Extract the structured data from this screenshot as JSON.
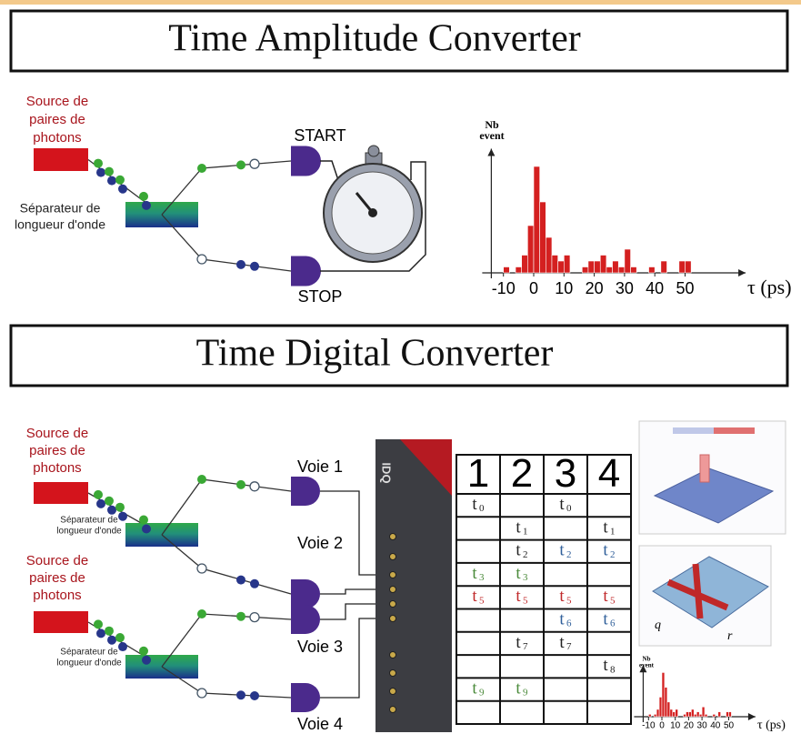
{
  "tac": {
    "title": "Time Amplitude Converter",
    "source": [
      "Source de",
      "paires de",
      "photons"
    ],
    "separator": [
      "Séparateur de",
      "longueur d'onde"
    ],
    "start": "START",
    "stop": "STOP",
    "histogram": {
      "y_label": [
        "Nb",
        "event"
      ],
      "x_label": "τ (ps)",
      "xticks": [
        -10,
        0,
        10,
        20,
        30,
        40,
        50
      ],
      "xlim": [
        -14,
        70
      ],
      "ylim": [
        0,
        21
      ],
      "color": "#d42020",
      "bins": [
        -10,
        -8,
        -6,
        -4,
        -2,
        0,
        2,
        4,
        6,
        8,
        10,
        12,
        14,
        16,
        18,
        20,
        22,
        24,
        26,
        28,
        30,
        32,
        34,
        36,
        38,
        40,
        42,
        44,
        46,
        48,
        50,
        52
      ],
      "counts": [
        1,
        0,
        1,
        3,
        8,
        18,
        12,
        6,
        3,
        2,
        3,
        0,
        0,
        1,
        2,
        2,
        3,
        1,
        2,
        1,
        4,
        1,
        0,
        0,
        1,
        0,
        2,
        0,
        0,
        2,
        2
      ]
    }
  },
  "tdc": {
    "title": "Time Digital Converter",
    "setups": [
      {
        "source": [
          "Source de",
          "paires de",
          "photons"
        ],
        "separator": [
          "Séparateur de",
          "longueur d'onde"
        ]
      },
      {
        "source": [
          "Source de",
          "paires de",
          "photons"
        ],
        "separator": [
          "Séparateur de",
          "longueur d'onde"
        ]
      }
    ],
    "channels": [
      "Voie 1",
      "Voie 2",
      "Voie 3",
      "Voie 4"
    ],
    "device_logo": "IDQ",
    "table": {
      "header": [
        "1",
        "2",
        "3",
        "4"
      ],
      "rows": [
        [
          {
            "text": "t",
            "sub": "0",
            "color": "#222222"
          },
          null,
          {
            "text": "t",
            "sub": "0",
            "color": "#222222"
          },
          null
        ],
        [
          null,
          {
            "text": "t",
            "sub": "1",
            "color": "#222222"
          },
          null,
          {
            "text": "t",
            "sub": "1",
            "color": "#222222"
          }
        ],
        [
          null,
          {
            "text": "t",
            "sub": "2",
            "color": "#222222"
          },
          {
            "text": "t",
            "sub": "2",
            "color": "#2f5f9a"
          },
          {
            "text": "t",
            "sub": "2",
            "color": "#2f5f9a"
          }
        ],
        [
          {
            "text": "t",
            "sub": "3",
            "color": "#4a8a3a"
          },
          {
            "text": "t",
            "sub": "3",
            "color": "#4a8a3a"
          },
          null,
          null
        ],
        [
          {
            "text": "t",
            "sub": "5",
            "color": "#c0282a"
          },
          {
            "text": "t",
            "sub": "5",
            "color": "#c0282a"
          },
          {
            "text": "t",
            "sub": "5",
            "color": "#c0282a"
          },
          {
            "text": "t",
            "sub": "5",
            "color": "#c0282a"
          }
        ],
        [
          null,
          null,
          {
            "text": "t",
            "sub": "6",
            "color": "#2f5f9a"
          },
          {
            "text": "t",
            "sub": "6",
            "color": "#2f5f9a"
          }
        ],
        [
          null,
          {
            "text": "t",
            "sub": "7",
            "color": "#222222"
          },
          {
            "text": "t",
            "sub": "7",
            "color": "#222222"
          },
          null
        ],
        [
          null,
          null,
          null,
          {
            "text": "t",
            "sub": "8",
            "color": "#222222"
          }
        ],
        [
          {
            "text": "t",
            "sub": "9",
            "color": "#4a8a3a"
          },
          {
            "text": "t",
            "sub": "9",
            "color": "#4a8a3a"
          },
          null,
          null
        ],
        [
          null,
          null,
          null,
          null
        ]
      ]
    },
    "plot_labels": [
      "q",
      "r"
    ],
    "small_histogram": {
      "y_label": [
        "Nb",
        "event"
      ],
      "x_label": "τ (ps)",
      "xticks": [
        -10,
        0,
        10,
        20,
        30,
        40,
        50
      ],
      "xlim": [
        -14,
        70
      ],
      "ylim": [
        0,
        21
      ],
      "color": "#d42020",
      "bins": [
        -10,
        -8,
        -6,
        -4,
        -2,
        0,
        2,
        4,
        6,
        8,
        10,
        12,
        14,
        16,
        18,
        20,
        22,
        24,
        26,
        28,
        30,
        32,
        34,
        36,
        38,
        40,
        42,
        44,
        46,
        48,
        50,
        52
      ],
      "counts": [
        1,
        0,
        1,
        3,
        8,
        18,
        12,
        6,
        3,
        2,
        3,
        0,
        0,
        1,
        2,
        2,
        3,
        1,
        2,
        1,
        4,
        1,
        0,
        0,
        1,
        0,
        2,
        0,
        0,
        2,
        2
      ]
    }
  }
}
